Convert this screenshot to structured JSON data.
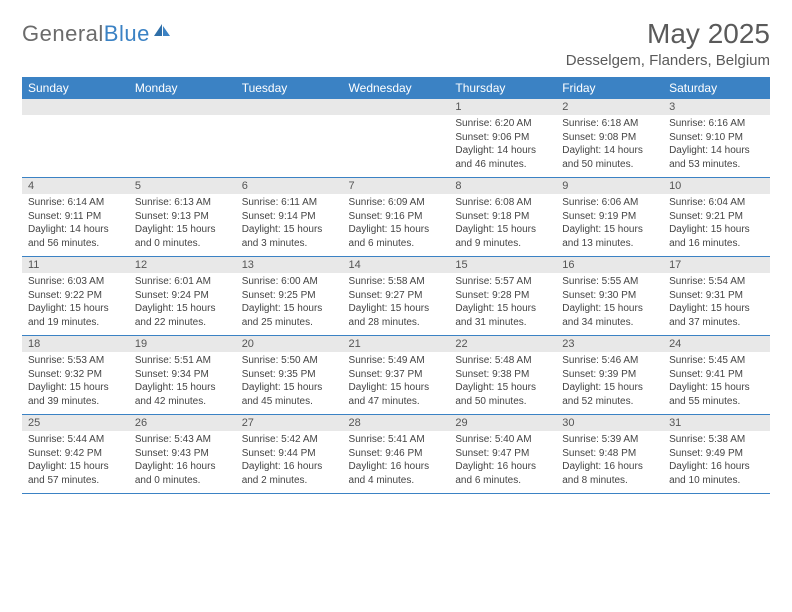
{
  "logo": {
    "text1": "General",
    "text2": "Blue"
  },
  "title": "May 2025",
  "location": "Desselgem, Flanders, Belgium",
  "colors": {
    "header_bg": "#3b82c4",
    "daynum_bg": "#e8e8e8",
    "row_border": "#3b82c4",
    "text": "#444444",
    "title_text": "#5a5a5a"
  },
  "day_labels": [
    "Sunday",
    "Monday",
    "Tuesday",
    "Wednesday",
    "Thursday",
    "Friday",
    "Saturday"
  ],
  "weeks": [
    [
      null,
      null,
      null,
      null,
      {
        "n": "1",
        "sr": "6:20 AM",
        "ss": "9:06 PM",
        "dl": "14 hours and 46 minutes."
      },
      {
        "n": "2",
        "sr": "6:18 AM",
        "ss": "9:08 PM",
        "dl": "14 hours and 50 minutes."
      },
      {
        "n": "3",
        "sr": "6:16 AM",
        "ss": "9:10 PM",
        "dl": "14 hours and 53 minutes."
      }
    ],
    [
      {
        "n": "4",
        "sr": "6:14 AM",
        "ss": "9:11 PM",
        "dl": "14 hours and 56 minutes."
      },
      {
        "n": "5",
        "sr": "6:13 AM",
        "ss": "9:13 PM",
        "dl": "15 hours and 0 minutes."
      },
      {
        "n": "6",
        "sr": "6:11 AM",
        "ss": "9:14 PM",
        "dl": "15 hours and 3 minutes."
      },
      {
        "n": "7",
        "sr": "6:09 AM",
        "ss": "9:16 PM",
        "dl": "15 hours and 6 minutes."
      },
      {
        "n": "8",
        "sr": "6:08 AM",
        "ss": "9:18 PM",
        "dl": "15 hours and 9 minutes."
      },
      {
        "n": "9",
        "sr": "6:06 AM",
        "ss": "9:19 PM",
        "dl": "15 hours and 13 minutes."
      },
      {
        "n": "10",
        "sr": "6:04 AM",
        "ss": "9:21 PM",
        "dl": "15 hours and 16 minutes."
      }
    ],
    [
      {
        "n": "11",
        "sr": "6:03 AM",
        "ss": "9:22 PM",
        "dl": "15 hours and 19 minutes."
      },
      {
        "n": "12",
        "sr": "6:01 AM",
        "ss": "9:24 PM",
        "dl": "15 hours and 22 minutes."
      },
      {
        "n": "13",
        "sr": "6:00 AM",
        "ss": "9:25 PM",
        "dl": "15 hours and 25 minutes."
      },
      {
        "n": "14",
        "sr": "5:58 AM",
        "ss": "9:27 PM",
        "dl": "15 hours and 28 minutes."
      },
      {
        "n": "15",
        "sr": "5:57 AM",
        "ss": "9:28 PM",
        "dl": "15 hours and 31 minutes."
      },
      {
        "n": "16",
        "sr": "5:55 AM",
        "ss": "9:30 PM",
        "dl": "15 hours and 34 minutes."
      },
      {
        "n": "17",
        "sr": "5:54 AM",
        "ss": "9:31 PM",
        "dl": "15 hours and 37 minutes."
      }
    ],
    [
      {
        "n": "18",
        "sr": "5:53 AM",
        "ss": "9:32 PM",
        "dl": "15 hours and 39 minutes."
      },
      {
        "n": "19",
        "sr": "5:51 AM",
        "ss": "9:34 PM",
        "dl": "15 hours and 42 minutes."
      },
      {
        "n": "20",
        "sr": "5:50 AM",
        "ss": "9:35 PM",
        "dl": "15 hours and 45 minutes."
      },
      {
        "n": "21",
        "sr": "5:49 AM",
        "ss": "9:37 PM",
        "dl": "15 hours and 47 minutes."
      },
      {
        "n": "22",
        "sr": "5:48 AM",
        "ss": "9:38 PM",
        "dl": "15 hours and 50 minutes."
      },
      {
        "n": "23",
        "sr": "5:46 AM",
        "ss": "9:39 PM",
        "dl": "15 hours and 52 minutes."
      },
      {
        "n": "24",
        "sr": "5:45 AM",
        "ss": "9:41 PM",
        "dl": "15 hours and 55 minutes."
      }
    ],
    [
      {
        "n": "25",
        "sr": "5:44 AM",
        "ss": "9:42 PM",
        "dl": "15 hours and 57 minutes."
      },
      {
        "n": "26",
        "sr": "5:43 AM",
        "ss": "9:43 PM",
        "dl": "16 hours and 0 minutes."
      },
      {
        "n": "27",
        "sr": "5:42 AM",
        "ss": "9:44 PM",
        "dl": "16 hours and 2 minutes."
      },
      {
        "n": "28",
        "sr": "5:41 AM",
        "ss": "9:46 PM",
        "dl": "16 hours and 4 minutes."
      },
      {
        "n": "29",
        "sr": "5:40 AM",
        "ss": "9:47 PM",
        "dl": "16 hours and 6 minutes."
      },
      {
        "n": "30",
        "sr": "5:39 AM",
        "ss": "9:48 PM",
        "dl": "16 hours and 8 minutes."
      },
      {
        "n": "31",
        "sr": "5:38 AM",
        "ss": "9:49 PM",
        "dl": "16 hours and 10 minutes."
      }
    ]
  ],
  "labels": {
    "sunrise": "Sunrise:",
    "sunset": "Sunset:",
    "daylight": "Daylight:"
  }
}
